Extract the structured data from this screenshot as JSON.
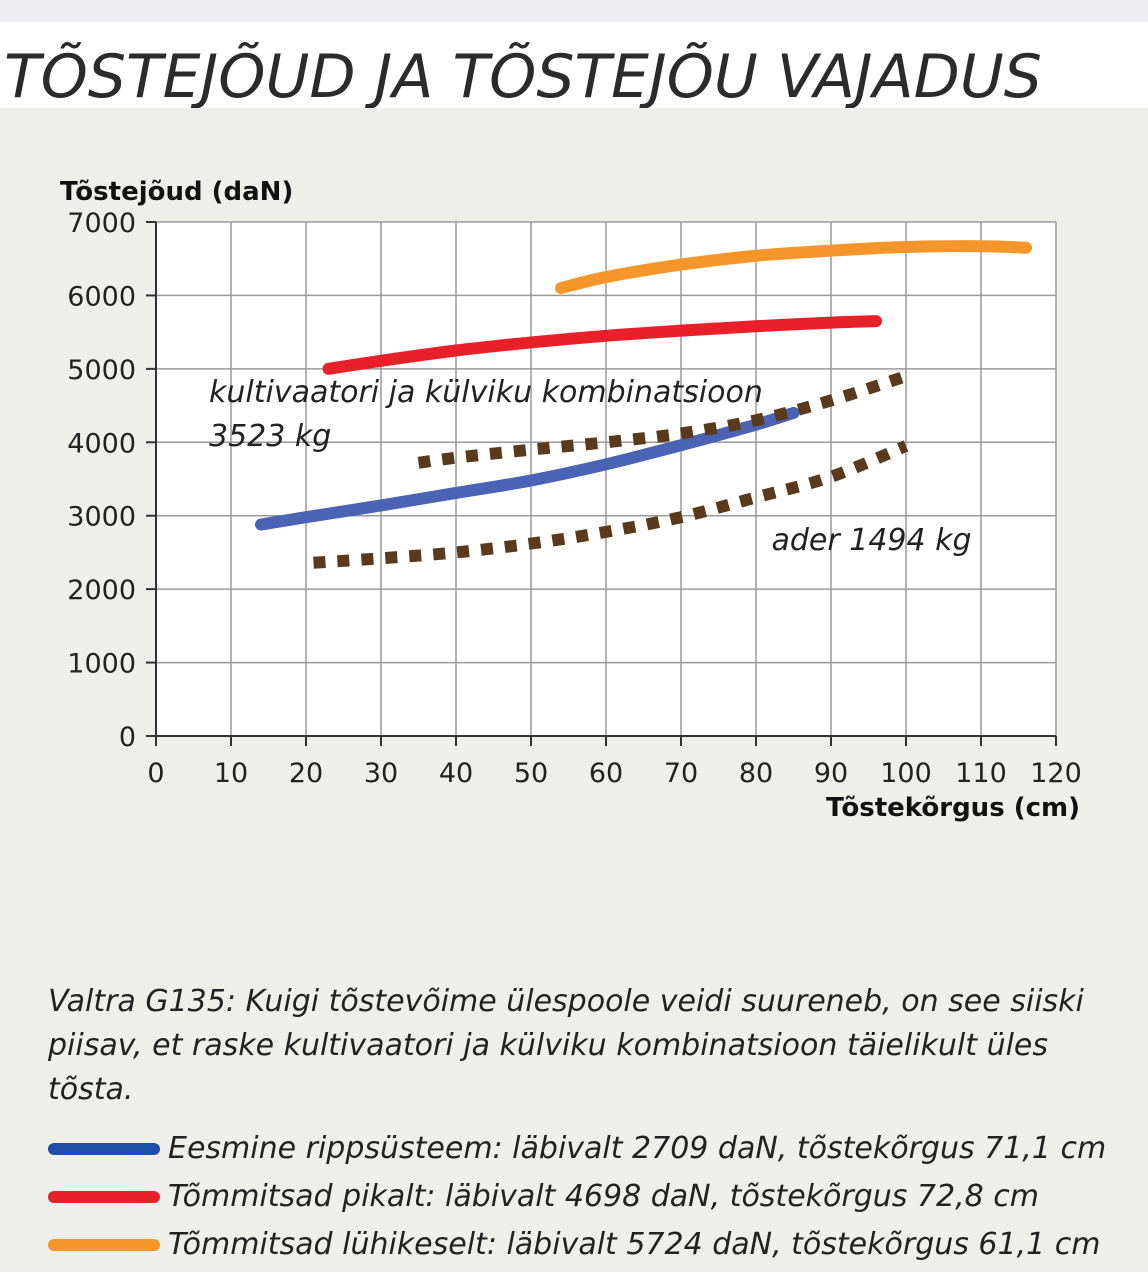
{
  "title": "TÕSTEJÕUD JA TÕSTEJÕU VAJADUS",
  "chart_data": {
    "type": "line",
    "ylabel": "Tõstejõud (daN)",
    "xlabel": "Tõstekõrgus (cm)",
    "xlim": [
      0,
      120
    ],
    "ylim": [
      0,
      7000
    ],
    "xticks": [
      "0",
      "10",
      "20",
      "30",
      "40",
      "50",
      "60",
      "70",
      "80",
      "90",
      "100",
      "110",
      "120"
    ],
    "yticks": [
      "0",
      "1000",
      "2000",
      "3000",
      "4000",
      "5000",
      "6000",
      "7000"
    ],
    "grid": true,
    "series": [
      {
        "name": "Eesmine rippsüsteem: läbivalt 2709 daN, tõstekõrgus 71,1 cm",
        "color": "#4a63b4",
        "style": "solid",
        "x": [
          14,
          20,
          30,
          40,
          50,
          60,
          70,
          80,
          85
        ],
        "y": [
          2880,
          2980,
          3140,
          3310,
          3480,
          3700,
          3960,
          4240,
          4400
        ]
      },
      {
        "name": "Tõmmitsad pikalt: läbivalt 4698 daN, tõstekõrgus 72,8 cm",
        "color": "#e8202a",
        "style": "solid",
        "x": [
          23,
          30,
          40,
          50,
          60,
          70,
          80,
          90,
          96
        ],
        "y": [
          5000,
          5110,
          5250,
          5360,
          5450,
          5520,
          5580,
          5630,
          5650
        ]
      },
      {
        "name": "Tõmmitsad lühikeselt: läbivalt 5724 daN, tõstekõrgus 61,1 cm",
        "color": "#f5962a",
        "style": "solid",
        "x": [
          54,
          60,
          70,
          80,
          90,
          100,
          110,
          116
        ],
        "y": [
          6100,
          6250,
          6420,
          6540,
          6610,
          6660,
          6670,
          6650
        ]
      },
      {
        "name": "kultivaatori ja külviku kombinatsioon 3523 kg",
        "color": "#5a3a1a",
        "style": "dotted",
        "x": [
          35,
          40,
          50,
          60,
          70,
          80,
          90,
          100
        ],
        "y": [
          3720,
          3790,
          3900,
          4000,
          4120,
          4300,
          4570,
          4900
        ]
      },
      {
        "name": "ader 1494 kg",
        "color": "#5a3a1a",
        "style": "dotted",
        "x": [
          21,
          30,
          40,
          50,
          60,
          70,
          80,
          90,
          100
        ],
        "y": [
          2360,
          2420,
          2500,
          2620,
          2780,
          2980,
          3250,
          3530,
          3950
        ]
      }
    ],
    "annotations": [
      {
        "text": "kultivaatori ja külviku kombinatsioon",
        "x": 6,
        "y": 4550
      },
      {
        "text": "3523 kg",
        "x": 6,
        "y": 3950
      },
      {
        "text": "ader 1494 kg",
        "x": 81,
        "y": 2530
      }
    ]
  },
  "caption": "Valtra G135: Kuigi tõstevõime ülespoole veidi suureneb, on see siiski piisav, et raske kultivaatori ja külviku kombinatsioon täielikult üles tõsta.",
  "legend": [
    {
      "label": "Eesmine rippsüsteem: läbivalt 2709 daN, tõstekõrgus 71,1 cm",
      "color": "#1f4fa8"
    },
    {
      "label": "Tõmmitsad pikalt: läbivalt 4698 daN, tõstekõrgus 72,8 cm",
      "color": "#e8202a"
    },
    {
      "label": "Tõmmitsad lühikeselt: läbivalt 5724 daN, tõstekõrgus 61,1 cm",
      "color": "#f5962a"
    }
  ]
}
